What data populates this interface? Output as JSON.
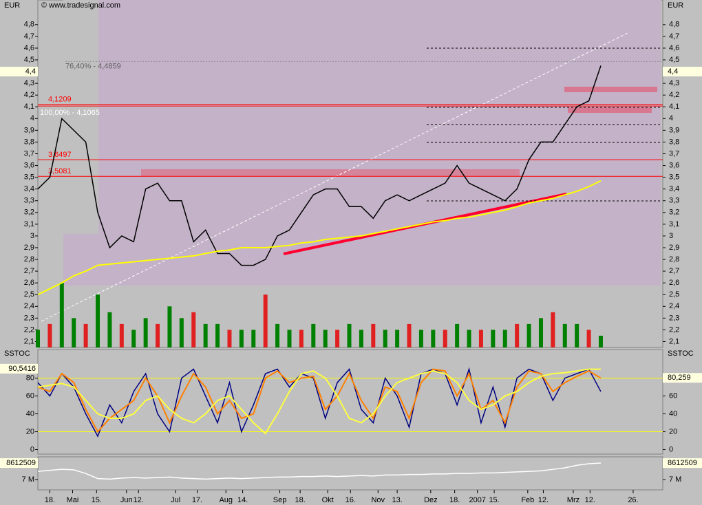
{
  "chart_data": [
    {
      "type": "line",
      "source": "© www.tradesignal.com",
      "ylabel": "EUR",
      "x": [
        0,
        1,
        2,
        3,
        4,
        5,
        6,
        7,
        8,
        9,
        10,
        11,
        12,
        13,
        14,
        15,
        16,
        17,
        18,
        19,
        20,
        21,
        22,
        23,
        24,
        25,
        26,
        27,
        28,
        29,
        30,
        31,
        32,
        33,
        34,
        35,
        36,
        37,
        38,
        39,
        40,
        41,
        42,
        43,
        44,
        45,
        46,
        47
      ],
      "xlim": [
        0,
        52
      ],
      "ylim": [
        2.05,
        5.01
      ],
      "yticks": [
        {
          "value": 2.1,
          "label": "2,1"
        },
        {
          "value": 2.2,
          "label": "2,2"
        },
        {
          "value": 2.3,
          "label": "2,3"
        },
        {
          "value": 2.4,
          "label": "2,4"
        },
        {
          "value": 2.5,
          "label": "2,5"
        },
        {
          "value": 2.6,
          "label": "2,6"
        },
        {
          "value": 2.7,
          "label": "2,7"
        },
        {
          "value": 2.8,
          "label": "2,8"
        },
        {
          "value": 2.9,
          "label": "2,9"
        },
        {
          "value": 3,
          "label": "3"
        },
        {
          "value": 3.1,
          "label": "3,1"
        },
        {
          "value": 3.2,
          "label": "3,2"
        },
        {
          "value": 3.3,
          "label": "3,3"
        },
        {
          "value": 3.4,
          "label": "3,4"
        },
        {
          "value": 3.5,
          "label": "3,5"
        },
        {
          "value": 3.6,
          "label": "3,6"
        },
        {
          "value": 3.7,
          "label": "3,7"
        },
        {
          "value": 3.8,
          "label": "3,8"
        },
        {
          "value": 3.9,
          "label": "3,9"
        },
        {
          "value": 4,
          "label": "4"
        },
        {
          "value": 4.1,
          "label": "4,1"
        },
        {
          "value": 4.2,
          "label": "4,2"
        },
        {
          "value": 4.3,
          "label": "4,3"
        },
        {
          "value": 4.5,
          "label": "4,5"
        },
        {
          "value": 4.6,
          "label": "4,6"
        },
        {
          "value": 4.7,
          "label": "4,7"
        },
        {
          "value": 4.8,
          "label": "4,8"
        }
      ],
      "last": {
        "value": 4.4,
        "label": "4,4"
      },
      "hlines": [
        {
          "value": 4.1209,
          "label": "4,1209"
        },
        {
          "value": 3.6497,
          "label": "3,6497"
        },
        {
          "value": 3.5081,
          "label": "3,5081"
        }
      ],
      "fib": [
        {
          "value": 4.4859,
          "label": "76,40% - 4,4859"
        },
        {
          "value": 4.1065,
          "label": "100,00% - 4,1065"
        }
      ],
      "series": [
        {
          "name": "Close",
          "color": "#000000",
          "values": [
            3.4,
            3.5,
            4.0,
            3.9,
            3.8,
            3.2,
            2.9,
            3.0,
            2.95,
            3.4,
            3.45,
            3.3,
            3.3,
            2.95,
            3.05,
            2.85,
            2.85,
            2.75,
            2.75,
            2.8,
            3.0,
            3.05,
            3.2,
            3.35,
            3.4,
            3.4,
            3.25,
            3.25,
            3.15,
            3.3,
            3.35,
            3.3,
            3.35,
            3.4,
            3.45,
            3.6,
            3.45,
            3.4,
            3.35,
            3.3,
            3.4,
            3.65,
            3.8,
            3.8,
            3.95,
            4.1,
            4.15,
            4.45
          ]
        },
        {
          "name": "MA",
          "color": "#ffff00",
          "values": [
            2.5,
            2.55,
            2.6,
            2.66,
            2.7,
            2.75,
            2.76,
            2.77,
            2.78,
            2.79,
            2.8,
            2.81,
            2.82,
            2.83,
            2.85,
            2.87,
            2.88,
            2.9,
            2.9,
            2.9,
            2.91,
            2.92,
            2.94,
            2.95,
            2.97,
            2.98,
            2.99,
            3.0,
            3.02,
            3.04,
            3.06,
            3.08,
            3.1,
            3.12,
            3.13,
            3.15,
            3.16,
            3.18,
            3.2,
            3.22,
            3.25,
            3.28,
            3.3,
            3.32,
            3.35,
            3.38,
            3.42,
            3.47
          ]
        }
      ],
      "volume": {
        "color": "#008000",
        "values": [
          2.2,
          2.25,
          2.6,
          2.3,
          2.25,
          2.5,
          2.35,
          2.25,
          2.2,
          2.3,
          2.25,
          2.4,
          2.3,
          2.35,
          2.25,
          2.25,
          2.2,
          2.2,
          2.2,
          2.5,
          2.25,
          2.2,
          2.2,
          2.25,
          2.2,
          2.2,
          2.25,
          2.2,
          2.25,
          2.2,
          2.2,
          2.25,
          2.2,
          2.2,
          2.2,
          2.25,
          2.2,
          2.2,
          2.2,
          2.2,
          2.25,
          2.25,
          2.3,
          2.35,
          2.25,
          2.25,
          2.2,
          2.15
        ]
      }
    },
    {
      "type": "line",
      "ylabel": "SSTOC",
      "x": [
        0,
        1,
        2,
        3,
        4,
        5,
        6,
        7,
        8,
        9,
        10,
        11,
        12,
        13,
        14,
        15,
        16,
        17,
        18,
        19,
        20,
        21,
        22,
        23,
        24,
        25,
        26,
        27,
        28,
        29,
        30,
        31,
        32,
        33,
        34,
        35,
        36,
        37,
        38,
        39,
        40,
        41,
        42,
        43,
        44,
        45,
        46,
        47
      ],
      "xlim": [
        0,
        52
      ],
      "ylim": [
        -5,
        112
      ],
      "yticks": [
        0,
        20,
        40,
        60,
        80
      ],
      "levels": [
        80,
        20
      ],
      "left_label": {
        "value": 90.5416,
        "label": "90,5416"
      },
      "right_label": {
        "value": 80.259,
        "label": "80,259"
      },
      "series": [
        {
          "name": "Fast",
          "color": "#000080",
          "values": [
            75,
            60,
            85,
            70,
            40,
            15,
            50,
            30,
            65,
            85,
            40,
            20,
            80,
            90,
            60,
            30,
            75,
            20,
            50,
            85,
            90,
            70,
            85,
            80,
            35,
            75,
            90,
            45,
            30,
            80,
            60,
            25,
            85,
            90,
            85,
            50,
            90,
            30,
            70,
            25,
            80,
            90,
            85,
            55,
            80,
            85,
            90,
            65
          ]
        },
        {
          "name": "Signal",
          "color": "#ff8000",
          "values": [
            70,
            65,
            85,
            75,
            45,
            20,
            35,
            45,
            55,
            80,
            60,
            30,
            60,
            85,
            70,
            40,
            55,
            35,
            40,
            80,
            88,
            75,
            80,
            82,
            45,
            60,
            85,
            55,
            35,
            70,
            65,
            35,
            75,
            90,
            88,
            60,
            85,
            45,
            55,
            30,
            70,
            88,
            85,
            65,
            75,
            82,
            88,
            80
          ]
        },
        {
          "name": "Slow",
          "color": "#ffff40",
          "values": [
            70,
            72,
            74,
            70,
            55,
            40,
            35,
            35,
            40,
            55,
            60,
            45,
            35,
            30,
            40,
            55,
            60,
            45,
            30,
            18,
            40,
            65,
            85,
            88,
            80,
            60,
            35,
            30,
            40,
            60,
            75,
            80,
            85,
            88,
            85,
            75,
            55,
            45,
            50,
            60,
            65,
            75,
            82,
            85,
            86,
            88,
            90,
            90
          ]
        }
      ]
    },
    {
      "type": "line",
      "x": [
        0,
        1,
        2,
        3,
        4,
        5,
        6,
        7,
        8,
        9,
        10,
        11,
        12,
        13,
        14,
        15,
        16,
        17,
        18,
        19,
        20,
        21,
        22,
        23,
        24,
        25,
        26,
        27,
        28,
        29,
        30,
        31,
        32,
        33,
        34,
        35,
        36,
        37,
        38,
        39,
        40,
        41,
        42,
        43,
        44,
        45,
        46,
        47
      ],
      "xlim": [
        0,
        52
      ],
      "ylim": [
        6000000,
        9220000
      ],
      "yticks": [
        {
          "value": 7000000,
          "label": "7 M"
        }
      ],
      "last": {
        "value": 8612509,
        "label": "8612509"
      },
      "series": [
        {
          "name": "OBV",
          "color": "#ffffff",
          "values": [
            7800000,
            7900000,
            8000000,
            7950000,
            7600000,
            7100000,
            7050000,
            7150000,
            7200000,
            7150000,
            7200000,
            7250000,
            7150000,
            7100000,
            7050000,
            7100000,
            7150000,
            7100000,
            7150000,
            7200000,
            7250000,
            7250000,
            7300000,
            7300000,
            7350000,
            7300000,
            7350000,
            7400000,
            7350000,
            7450000,
            7450000,
            7500000,
            7500000,
            7550000,
            7550000,
            7600000,
            7600000,
            7650000,
            7650000,
            7700000,
            7750000,
            7800000,
            7850000,
            8000000,
            8150000,
            8400000,
            8550000,
            8612509
          ]
        }
      ],
      "xticks": [
        {
          "value": 1.0,
          "label": "18."
        },
        {
          "value": 2.9,
          "label": "Mai"
        },
        {
          "value": 4.9,
          "label": "15."
        },
        {
          "value": 7.4,
          "label": "Jun"
        },
        {
          "value": 8.4,
          "label": "12."
        },
        {
          "value": 11.5,
          "label": "Jul"
        },
        {
          "value": 13.3,
          "label": "17."
        },
        {
          "value": 15.7,
          "label": "Aug"
        },
        {
          "value": 17.1,
          "label": "14."
        },
        {
          "value": 20.2,
          "label": "Sep"
        },
        {
          "value": 21.9,
          "label": "18."
        },
        {
          "value": 24.2,
          "label": "Okt"
        },
        {
          "value": 26.1,
          "label": "16."
        },
        {
          "value": 28.4,
          "label": "Nov"
        },
        {
          "value": 30.0,
          "label": "13."
        },
        {
          "value": 32.8,
          "label": "Dez"
        },
        {
          "value": 34.8,
          "label": "18."
        },
        {
          "value": 36.7,
          "label": "2007"
        },
        {
          "value": 38.1,
          "label": "15."
        },
        {
          "value": 40.9,
          "label": "Feb"
        },
        {
          "value": 42.2,
          "label": "12."
        },
        {
          "value": 44.7,
          "label": "Mrz"
        },
        {
          "value": 46.1,
          "label": "12."
        },
        {
          "value": 49.7,
          "label": "26."
        }
      ]
    }
  ]
}
